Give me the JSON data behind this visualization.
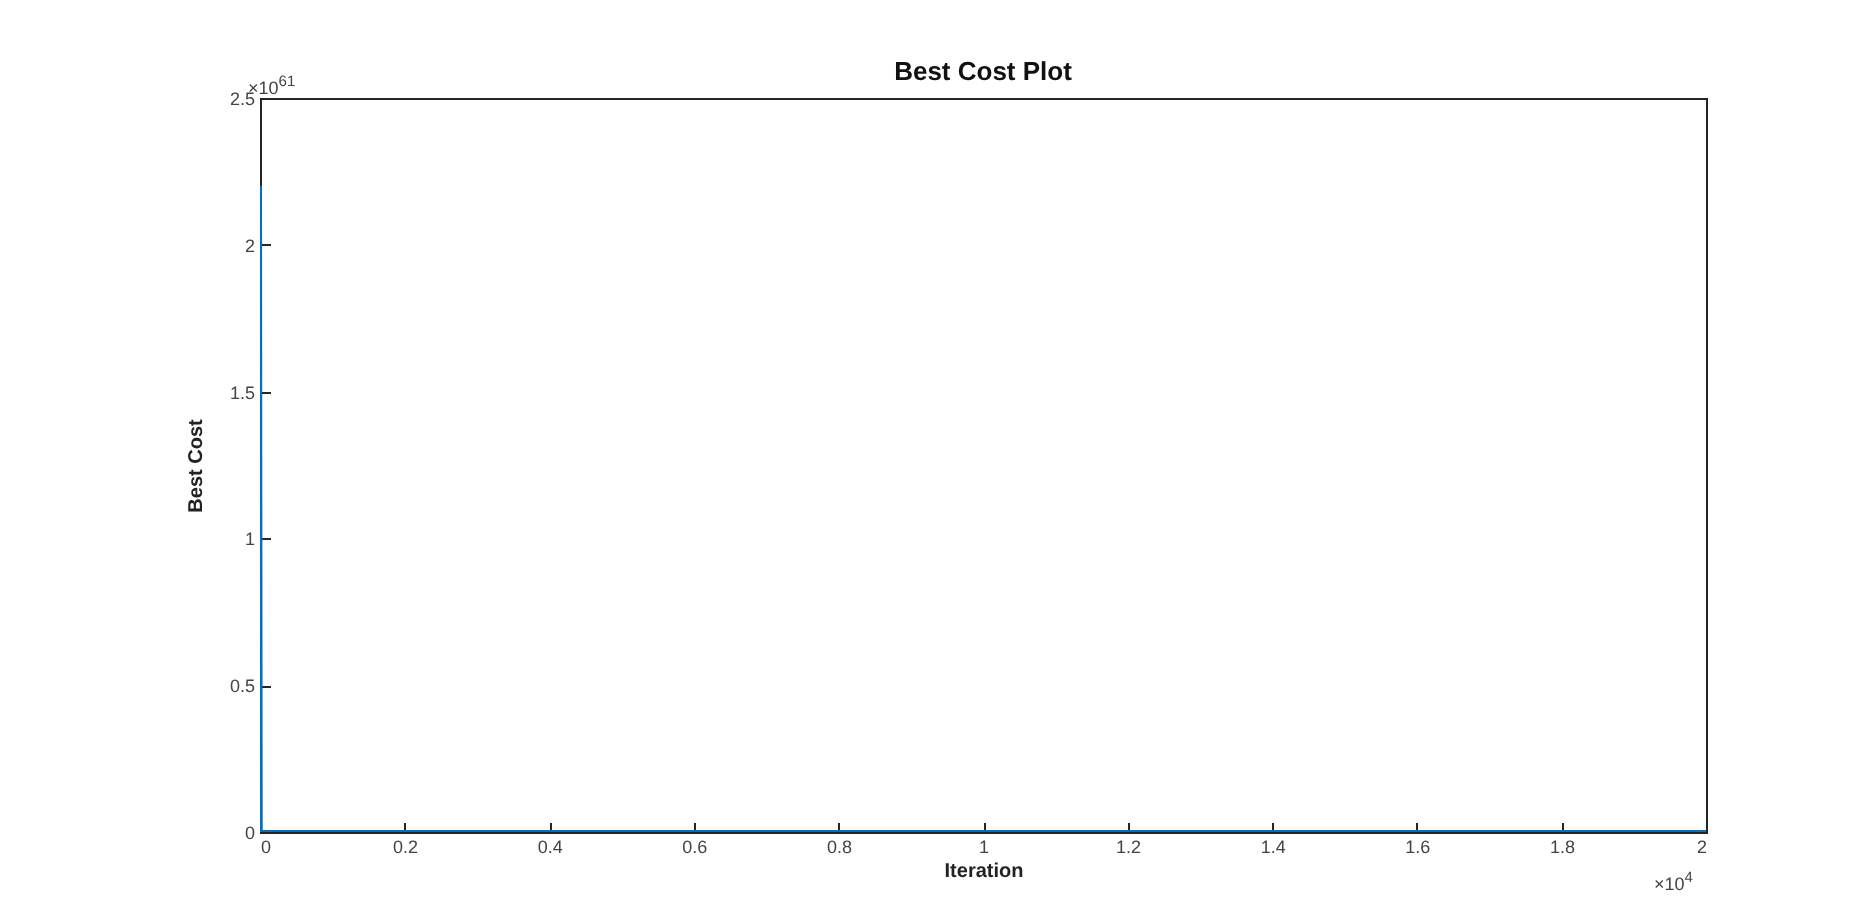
{
  "chart_data": {
    "type": "line",
    "title": "Best Cost Plot",
    "xlabel": "Iteration",
    "ylabel": "Best Cost",
    "x": [
      0,
      0.001,
      2
    ],
    "series": [
      {
        "color": "#0072bd",
        "values": [
          2.2,
          0,
          0
        ]
      }
    ],
    "xlim": [
      0,
      2
    ],
    "xticks": [
      0,
      0.2,
      0.4,
      0.6,
      0.8,
      1,
      1.2,
      1.4,
      1.6,
      1.8,
      2
    ],
    "ylim": [
      0,
      2.5
    ],
    "yticks": [
      0,
      0.5,
      1,
      1.5,
      2,
      2.5
    ],
    "annotations": [
      "×10$^{61}$",
      "×10$^{4}$"
    ],
    "grid": false
  }
}
